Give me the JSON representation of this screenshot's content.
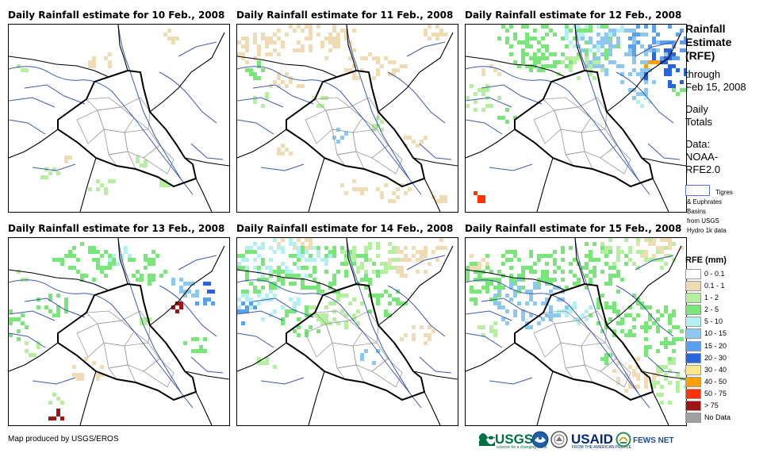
{
  "panels": [
    {
      "title": "Daily Rainfall estimate for 10 Feb., 2008",
      "date": "10 Feb., 2008"
    },
    {
      "title": "Daily Rainfall estimate for 11 Feb., 2008",
      "date": "11 Feb., 2008"
    },
    {
      "title": "Daily Rainfall estimate for 12 Feb., 2008",
      "date": "12 Feb., 2008"
    },
    {
      "title": "Daily Rainfall estimate for 13 Feb., 2008",
      "date": "13 Feb., 2008"
    },
    {
      "title": "Daily Rainfall estimate for 14 Feb., 2008",
      "date": "14 Feb., 2008"
    },
    {
      "title": "Daily Rainfall estimate for 15 Feb., 2008",
      "date": "15 Feb., 2008"
    }
  ],
  "sidebar": {
    "title_lines": [
      "Rainfall",
      "Estimate",
      "(RFE)"
    ],
    "sub_lines": [
      "through",
      "Feb 15, 2008"
    ],
    "daily_lines": [
      "Daily",
      "Totals"
    ],
    "data_lines": [
      "Data:",
      "NOAA-",
      "RFE2.0"
    ],
    "basin_lines": [
      "Tigres",
      "& Euphrates",
      "Basins",
      "from USGS",
      "Hydro 1k data"
    ],
    "basin_color": "#5a78c8",
    "legend_title": "RFE (mm)",
    "legend": [
      {
        "label": "0 - 0.1",
        "color": "#ffffff"
      },
      {
        "label": "0.1 - 1",
        "color": "#f0dcb4"
      },
      {
        "label": "1 - 2",
        "color": "#b4f0a0"
      },
      {
        "label": "2 - 5",
        "color": "#78e678"
      },
      {
        "label": "5 - 10",
        "color": "#b4f0f0"
      },
      {
        "label": "10 - 15",
        "color": "#8cc8f0"
      },
      {
        "label": "15 - 20",
        "color": "#5aa0f0"
      },
      {
        "label": "20 - 30",
        "color": "#2864dc"
      },
      {
        "label": "30 - 40",
        "color": "#ffe68c"
      },
      {
        "label": "40 - 50",
        "color": "#ffa000"
      },
      {
        "label": "50 - 75",
        "color": "#ff3200"
      },
      {
        "label": "> 75",
        "color": "#a01414"
      },
      {
        "label": "No Data",
        "color": "#a0a0a0"
      }
    ]
  },
  "footer": {
    "credit": "Map produced by USGS/EROS",
    "usgs": "USGS",
    "usgs_tagline": "science for a changing world",
    "usaid": "USAID",
    "usaid_tagline": "FROM THE AMERICAN PEOPLE",
    "fews": "FEWS NET"
  },
  "colors": {
    "border": "#000000",
    "province": "#9a9a9a",
    "river": "#3c5ab4"
  }
}
